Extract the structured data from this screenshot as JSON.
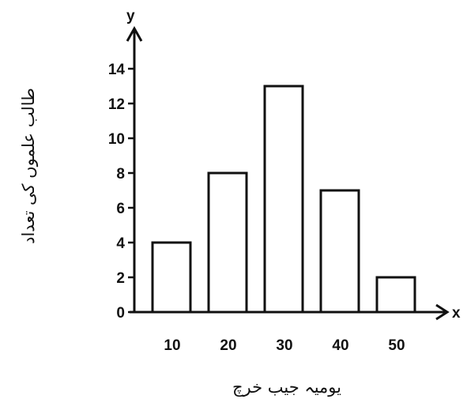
{
  "chart_data": {
    "type": "bar",
    "categories": [
      "10",
      "20",
      "30",
      "40",
      "50"
    ],
    "values": [
      4,
      8,
      13,
      7,
      2
    ],
    "xlabel": "یومیہ جیب خرچ",
    "ylabel": "طالب علموں کی تعداد",
    "x_axis_letter": "x",
    "y_axis_letter": "y",
    "ylim": [
      0,
      14
    ],
    "yticks": [
      "0",
      "2",
      "4",
      "6",
      "8",
      "10",
      "12",
      "14"
    ],
    "grid": false,
    "colors": {
      "bar_fill": "#ffffff",
      "bar_stroke": "#111111",
      "axis": "#111111"
    }
  }
}
